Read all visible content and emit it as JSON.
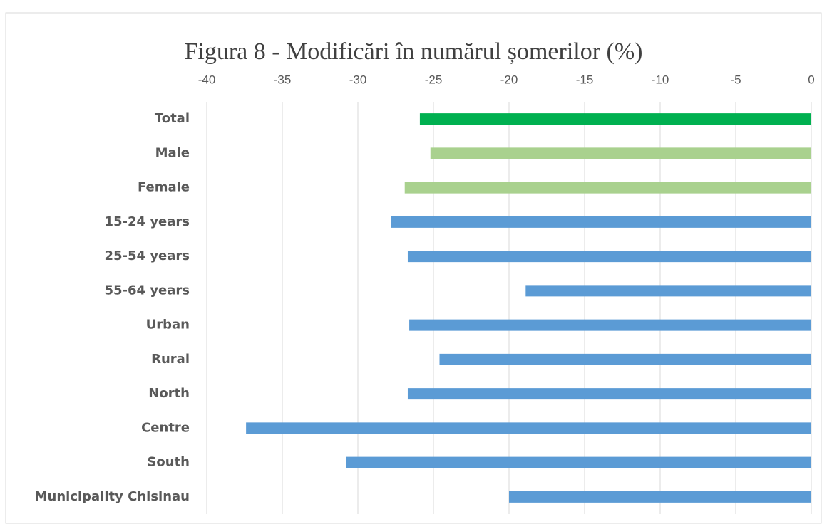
{
  "chart_data": {
    "type": "bar",
    "orientation": "horizontal",
    "title": "Figura 8 - Modificări în numărul șomerilor (%)",
    "categories": [
      "Total",
      "Male",
      "Female",
      "15-24 years",
      "25-54 years",
      "55-64 years",
      "Urban",
      "Rural",
      "North",
      "Centre",
      "South",
      "Municipality Chisinau"
    ],
    "values": [
      -25.9,
      -25.2,
      -26.9,
      -27.8,
      -26.7,
      -18.9,
      -26.6,
      -24.6,
      -26.7,
      -37.4,
      -30.8,
      -20.0
    ],
    "colors": [
      "#00b050",
      "#a9d18e",
      "#a9d18e",
      "#5b9bd5",
      "#5b9bd5",
      "#5b9bd5",
      "#5b9bd5",
      "#5b9bd5",
      "#5b9bd5",
      "#5b9bd5",
      "#5b9bd5",
      "#5b9bd5"
    ],
    "xlim": [
      -40,
      0
    ],
    "xticks": [
      -40,
      -35,
      -30,
      -25,
      -20,
      -15,
      -10,
      -5,
      0
    ],
    "grid": true,
    "axis_position": "top"
  }
}
